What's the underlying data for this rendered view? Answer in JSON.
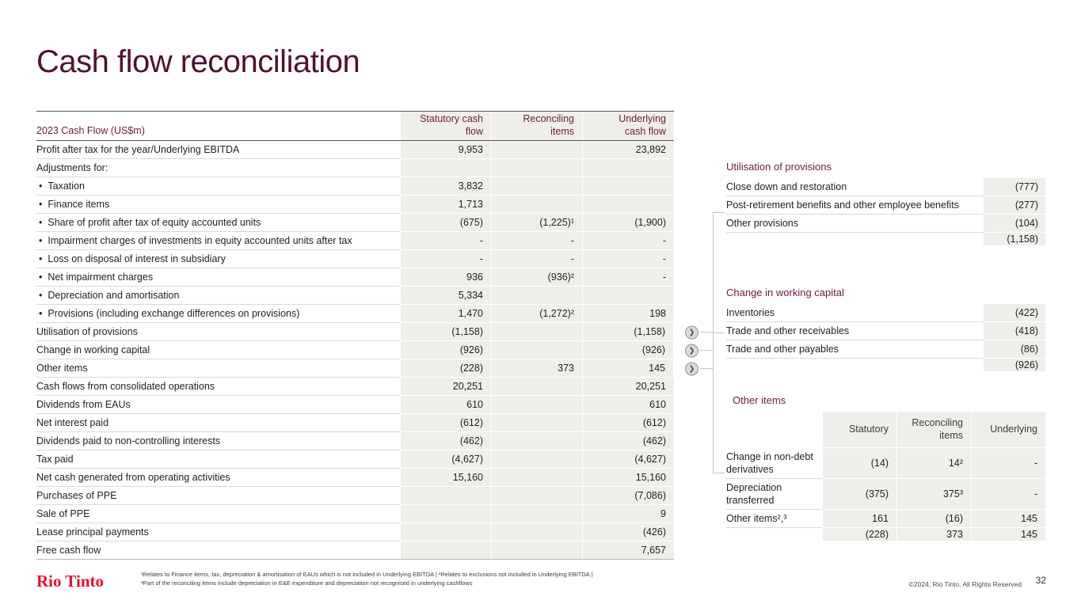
{
  "title": "Cash flow reconciliation",
  "colors": {
    "title_maroon": "#4e1232",
    "table_header_maroon": "#6b1d36",
    "logo_red": "#e8112d",
    "cell_bg": "#f0eeeb"
  },
  "main_table": {
    "col_headers": [
      "2023 Cash Flow (US$m)",
      "Statutory cash\nflow",
      "Reconciling\nitems",
      "Underlying\ncash flow"
    ],
    "rows": [
      {
        "label": "Profit after tax for the year/Underlying EBITDA",
        "bullet": false,
        "values": [
          "9,953",
          "",
          "23,892"
        ]
      },
      {
        "label": "Adjustments for:",
        "bullet": false,
        "values": [
          "",
          "",
          ""
        ]
      },
      {
        "label": "Taxation",
        "bullet": true,
        "values": [
          "3,832",
          "",
          ""
        ]
      },
      {
        "label": "Finance items",
        "bullet": true,
        "values": [
          "1,713",
          "",
          ""
        ]
      },
      {
        "label": "Share of profit after tax of equity accounted units",
        "bullet": true,
        "values": [
          "(675)",
          "(1,225)¹",
          "(1,900)"
        ]
      },
      {
        "label": "Impairment charges of investments in equity accounted units after tax",
        "bullet": true,
        "values": [
          "-",
          "-",
          "-"
        ]
      },
      {
        "label": "Loss on disposal of interest in subsidiary",
        "bullet": true,
        "values": [
          "-",
          "-",
          "-"
        ]
      },
      {
        "label": "Net impairment charges",
        "bullet": true,
        "values": [
          "936",
          "(936)²",
          "-"
        ]
      },
      {
        "label": "Depreciation and amortisation",
        "bullet": true,
        "values": [
          "5,334",
          "",
          ""
        ]
      },
      {
        "label": "Provisions (including exchange differences on provisions)",
        "bullet": true,
        "values": [
          "1,470",
          "(1,272)²",
          "198"
        ]
      },
      {
        "label": "Utilisation of provisions",
        "bullet": false,
        "values": [
          "(1,158)",
          "",
          "(1,158)"
        ],
        "chevron": true
      },
      {
        "label": "Change in working capital",
        "bullet": false,
        "values": [
          "(926)",
          "",
          "(926)"
        ],
        "chevron": true
      },
      {
        "label": "Other items",
        "bullet": false,
        "values": [
          "(228)",
          "373",
          "145"
        ],
        "chevron": true
      },
      {
        "label": "Cash flows from consolidated operations",
        "bullet": false,
        "values": [
          "20,251",
          "",
          "20,251"
        ]
      },
      {
        "label": "Dividends from EAUs",
        "bullet": false,
        "values": [
          "610",
          "",
          "610"
        ]
      },
      {
        "label": "Net interest paid",
        "bullet": false,
        "values": [
          "(612)",
          "",
          "(612)"
        ]
      },
      {
        "label": "Dividends paid to non-controlling interests",
        "bullet": false,
        "values": [
          "(462)",
          "",
          "(462)"
        ]
      },
      {
        "label": "Tax paid",
        "bullet": false,
        "values": [
          "(4,627)",
          "",
          "(4,627)"
        ]
      },
      {
        "label": "Net cash generated from operating activities",
        "bullet": false,
        "values": [
          "15,160",
          "",
          "15,160"
        ]
      },
      {
        "label": "Purchases of PPE",
        "bullet": false,
        "values": [
          "",
          "",
          "(7,086)"
        ]
      },
      {
        "label": "Sale of PPE",
        "bullet": false,
        "values": [
          "",
          "",
          "9"
        ]
      },
      {
        "label": "Lease principal payments",
        "bullet": false,
        "values": [
          "",
          "",
          "(426)"
        ]
      },
      {
        "label": "Free cash flow",
        "bullet": false,
        "values": [
          "",
          "",
          "7,657"
        ]
      }
    ]
  },
  "provisions_panel": {
    "heading": "Utilisation of provisions",
    "rows": [
      {
        "label": "Close down and restoration",
        "value": "(777)"
      },
      {
        "label": "Post-retirement benefits and other employee benefits",
        "value": "(277)"
      },
      {
        "label": "Other provisions",
        "value": "(104)"
      },
      {
        "label": "",
        "value": "(1,158)",
        "total": true
      }
    ]
  },
  "working_capital_panel": {
    "heading": "Change in working capital",
    "rows": [
      {
        "label": "Inventories",
        "value": "(422)"
      },
      {
        "label": "Trade and other receivables",
        "value": "(418)"
      },
      {
        "label": "Trade and other payables",
        "value": "(86)"
      },
      {
        "label": "",
        "value": "(926)",
        "total": true
      }
    ]
  },
  "other_items_panel": {
    "heading": "Other items",
    "col_headers": [
      "Statutory",
      "Reconciling\nitems",
      "Underlying"
    ],
    "rows": [
      {
        "label": "Change in non-debt derivatives",
        "values": [
          "(14)",
          "14²",
          "-"
        ]
      },
      {
        "label": "Depreciation transferred",
        "values": [
          "(375)",
          "375³",
          "-"
        ]
      },
      {
        "label": "Other items²,³",
        "values": [
          "161",
          "(16)",
          "145"
        ]
      },
      {
        "label": "",
        "values": [
          "(228)",
          "373",
          "145"
        ],
        "total": true
      }
    ]
  },
  "footnotes": [
    "¹Relates to Finance items, tax, depreciation & amortisation of EAUs which is not included in Underlying EBITDA | ²Relates to exclusions not included in Underlying EBITDA |",
    "³Part of the reconciling items include depreciation in E&E expenditure and depreciation not recognised in underlying cashflows"
  ],
  "chevron_glyph": "❯",
  "footer": {
    "logo": "Rio Tinto",
    "copyright": "©2024, Rio Tinto, All Rights Reserved",
    "page_number": "32"
  }
}
